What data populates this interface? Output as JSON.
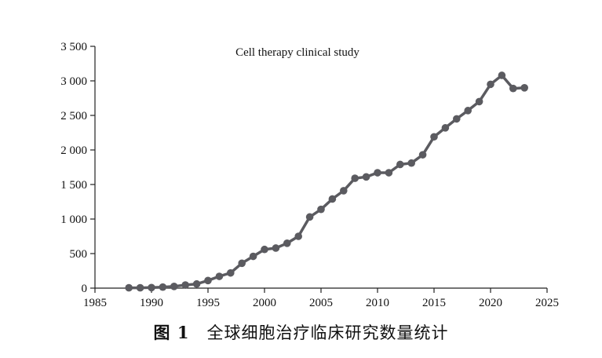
{
  "chart_data": {
    "type": "line",
    "title": "Cell therapy clinical study",
    "xlabel": "",
    "ylabel": "",
    "xlim": [
      1985,
      2025
    ],
    "ylim": [
      0,
      3500
    ],
    "x_ticks": [
      1985,
      1990,
      1995,
      2000,
      2005,
      2010,
      2015,
      2020,
      2025
    ],
    "x_tick_labels": [
      "1985",
      "1990",
      "1995",
      "2000",
      "2005",
      "2010",
      "2015",
      "2020",
      "2025"
    ],
    "y_ticks": [
      0,
      500,
      1000,
      1500,
      2000,
      2500,
      3000,
      3500
    ],
    "y_tick_labels": [
      "0",
      "500",
      "1 000",
      "1 500",
      "2 000",
      "2 500",
      "3 000",
      "3 500"
    ],
    "grid": false,
    "series": [
      {
        "color": "#5b5b60",
        "x": [
          1988,
          1989,
          1990,
          1991,
          1992,
          1993,
          1994,
          1995,
          1996,
          1997,
          1998,
          1999,
          2000,
          2001,
          2002,
          2003,
          2004,
          2005,
          2006,
          2007,
          2008,
          2009,
          2010,
          2011,
          2012,
          2013,
          2014,
          2015,
          2016,
          2017,
          2018,
          2019,
          2020,
          2021,
          2022,
          2023
        ],
        "values": [
          5,
          5,
          8,
          15,
          25,
          45,
          60,
          110,
          170,
          220,
          360,
          460,
          560,
          580,
          650,
          750,
          1030,
          1140,
          1290,
          1410,
          1590,
          1610,
          1670,
          1670,
          1790,
          1810,
          1930,
          2190,
          2320,
          2450,
          2570,
          2700,
          2950,
          3080,
          2890,
          2900
        ]
      }
    ]
  },
  "caption": {
    "figure_label": "图 1",
    "text": "全球细胞治疗临床研究数量统计"
  }
}
